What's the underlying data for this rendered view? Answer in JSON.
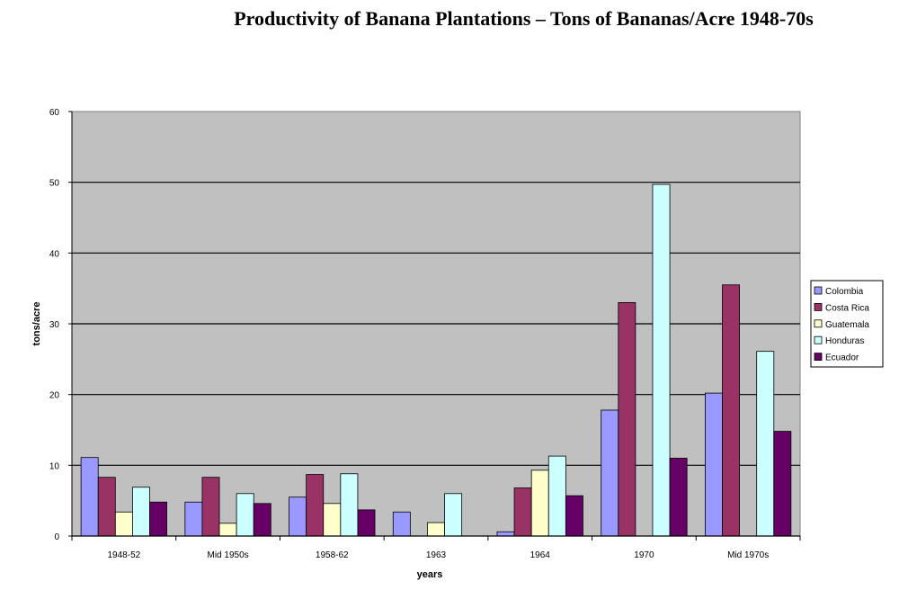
{
  "chart_data": {
    "type": "bar",
    "title": "Productivity of Banana Plantations – Tons of Bananas/Acre 1948-70s",
    "xlabel": "years",
    "ylabel": "tons/acre",
    "ylim": [
      0,
      60
    ],
    "yticks": [
      "0",
      "10",
      "20",
      "30",
      "40",
      "50",
      "60"
    ],
    "grid": true,
    "legend_position": "right",
    "categories": [
      "1948-52",
      "Mid 1950s",
      "1958-62",
      "1963",
      "1964",
      "1970",
      "Mid 1970s"
    ],
    "series": [
      {
        "name": "Colombia",
        "color": "#9999ff",
        "values": [
          11.1,
          4.8,
          5.5,
          3.4,
          0.6,
          17.8,
          20.2
        ]
      },
      {
        "name": "Costa Rica",
        "color": "#993366",
        "values": [
          8.3,
          8.3,
          8.7,
          null,
          6.8,
          33.0,
          35.5
        ]
      },
      {
        "name": "Guatemala",
        "color": "#ffffcc",
        "values": [
          3.4,
          1.8,
          4.6,
          1.9,
          9.3,
          null,
          null
        ]
      },
      {
        "name": "Honduras",
        "color": "#ccffff",
        "values": [
          6.9,
          6.0,
          8.8,
          6.0,
          11.3,
          49.7,
          26.1
        ]
      },
      {
        "name": "Ecuador",
        "color": "#660066",
        "values": [
          4.8,
          4.6,
          3.7,
          null,
          5.7,
          11.0,
          14.8
        ]
      }
    ]
  }
}
